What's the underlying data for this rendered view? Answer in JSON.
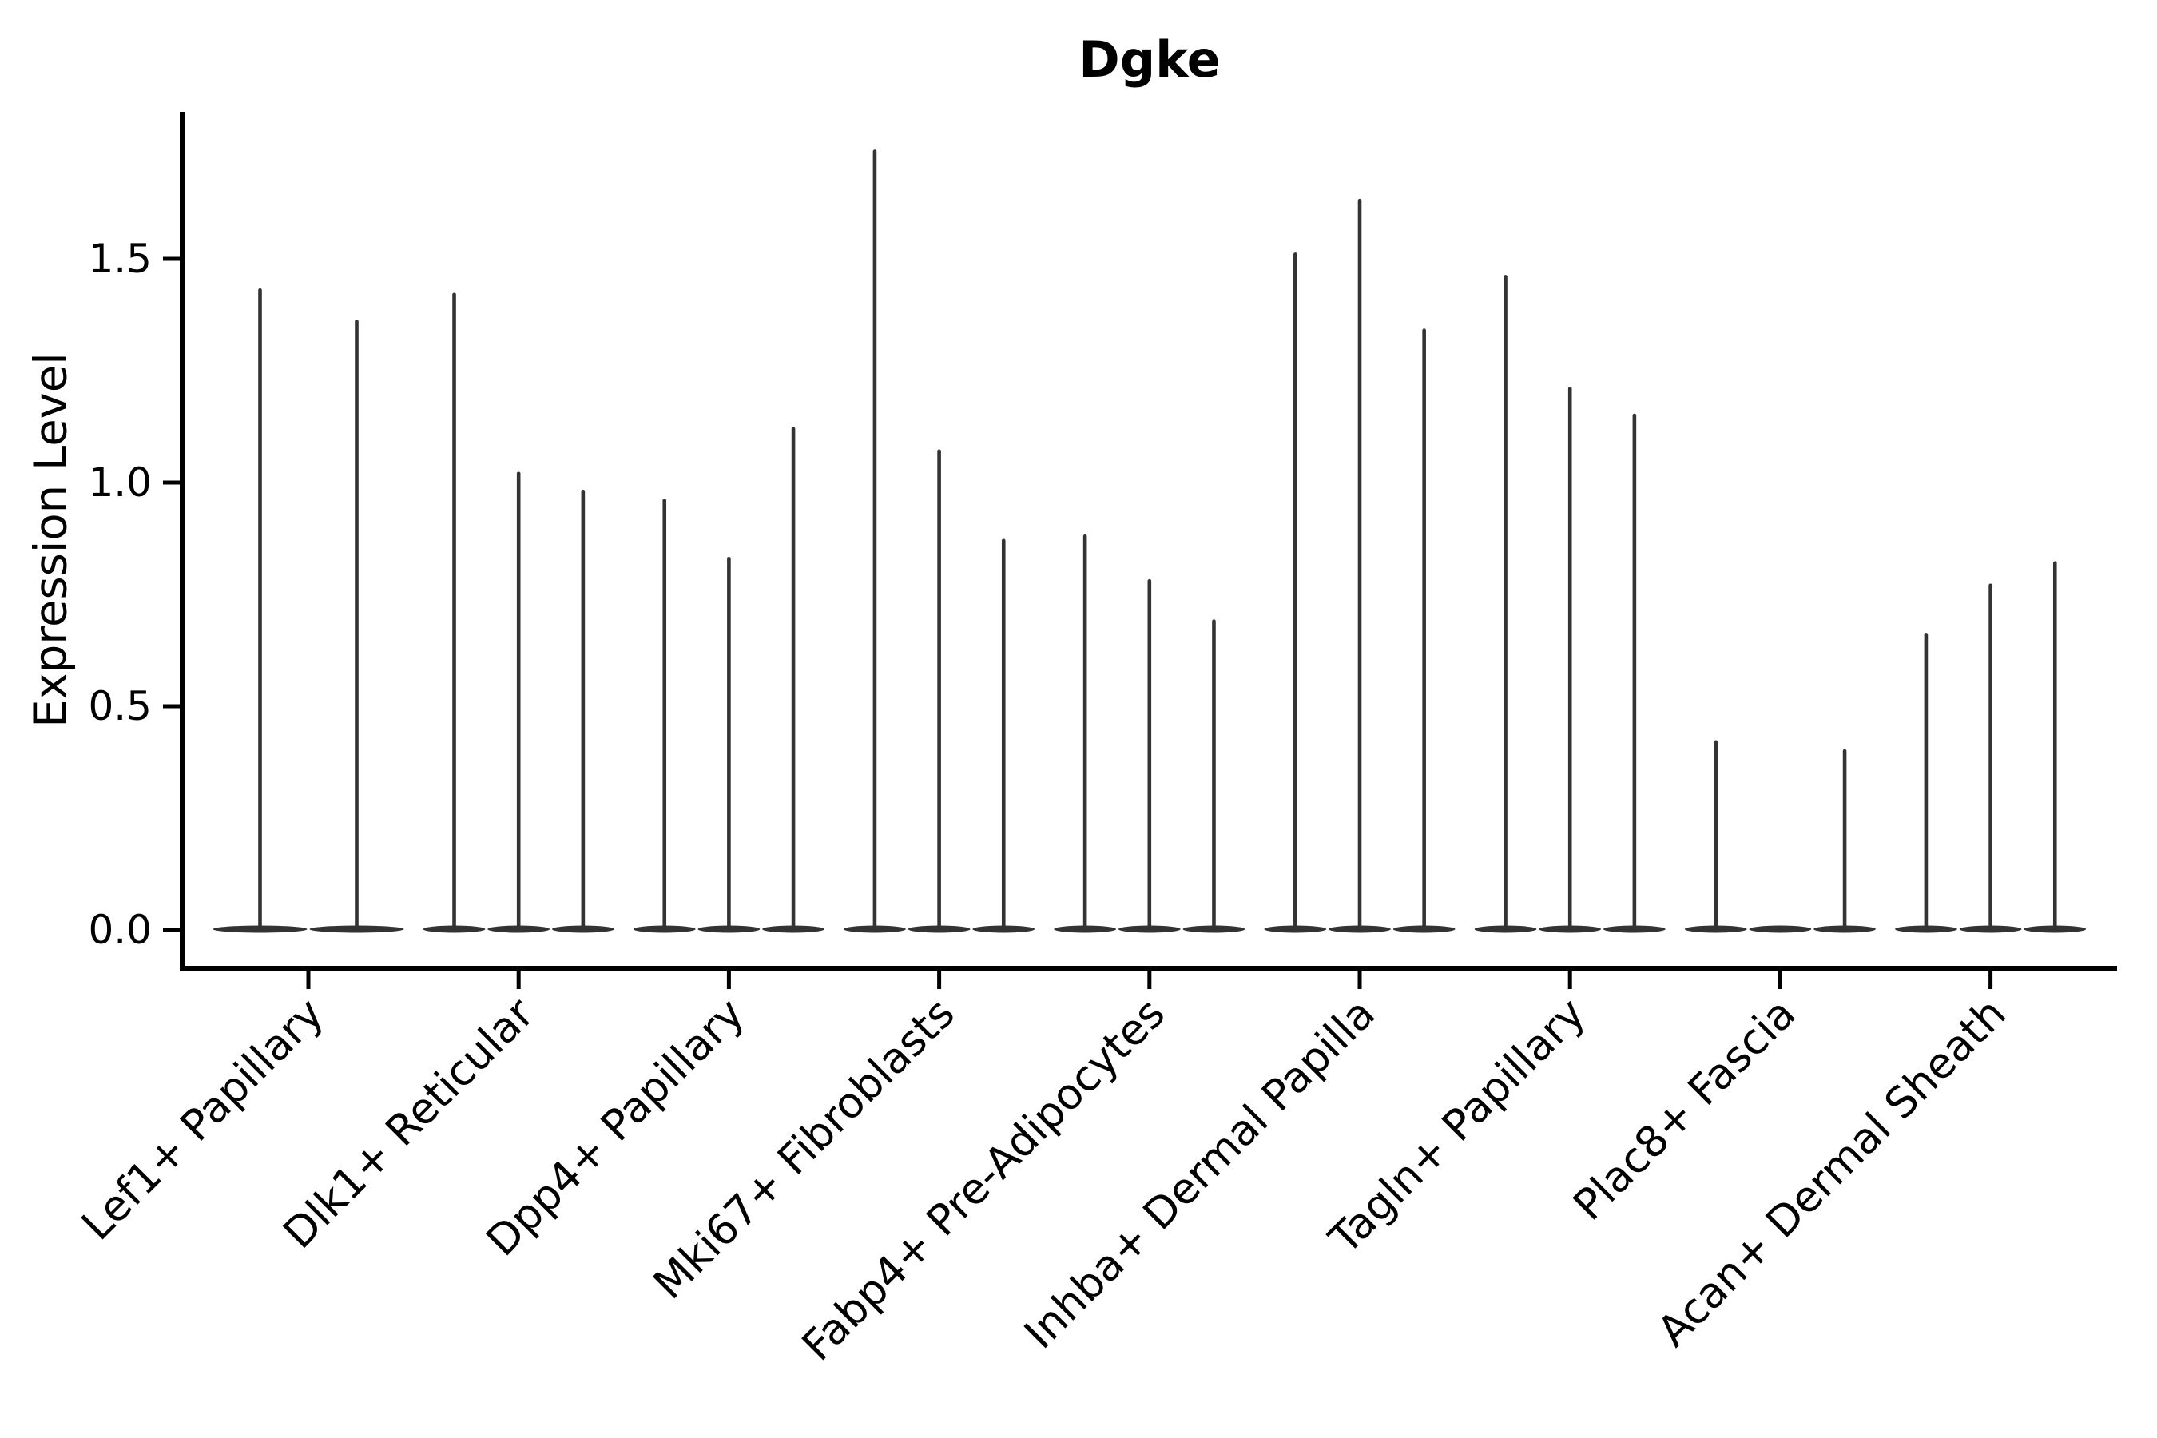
{
  "title": "Dgke",
  "axes": {
    "ylabel": "Expression Level",
    "ytick_labels": [
      "0.0",
      "0.5",
      "1.0",
      "1.5"
    ]
  },
  "chart_data": {
    "type": "violin",
    "title": "Dgke",
    "xlabel": "",
    "ylabel": "Expression Level",
    "ylim": [
      -0.09,
      1.83
    ],
    "yticks": [
      0.0,
      0.5,
      1.0,
      1.5
    ],
    "ytick_labels": [
      "0.0",
      "0.5",
      "1.0",
      "1.5"
    ],
    "grid": false,
    "legend": "none",
    "categories": [
      "Lef1+ Papillary",
      "Dlk1+ Reticular",
      "Dpp4+ Papillary",
      "Mki67+ Fibroblasts",
      "Fabp4+ Pre-Adipocytes",
      "Inhba+ Dermal Papilla",
      "Tagln+ Papillary",
      "Plac8+ Fascia",
      "Acan+ Dermal Sheath"
    ],
    "groups": [
      {
        "category": "Lef1+ Papillary",
        "violin_maxima": [
          1.43,
          1.36
        ]
      },
      {
        "category": "Dlk1+ Reticular",
        "violin_maxima": [
          1.42,
          1.02,
          0.98
        ]
      },
      {
        "category": "Dpp4+ Papillary",
        "violin_maxima": [
          0.96,
          0.83,
          1.12
        ]
      },
      {
        "category": "Mki67+ Fibroblasts",
        "violin_maxima": [
          1.74,
          1.07,
          0.87
        ]
      },
      {
        "category": "Fabp4+ Pre-Adipocytes",
        "violin_maxima": [
          0.88,
          0.78,
          0.69
        ]
      },
      {
        "category": "Inhba+ Dermal Papilla",
        "violin_maxima": [
          1.51,
          1.63,
          1.34
        ]
      },
      {
        "category": "Tagln+ Papillary",
        "violin_maxima": [
          1.46,
          1.21,
          1.15
        ]
      },
      {
        "category": "Plac8+ Fascia",
        "violin_maxima": [
          0.42,
          0.0,
          0.4
        ]
      },
      {
        "category": "Acan+ Dermal Sheath",
        "violin_maxima": [
          0.66,
          0.77,
          0.82
        ]
      }
    ],
    "violins_all_have_zero_baseline": true,
    "colors": {
      "violin": "#333333",
      "axis": "#000000",
      "text": "#000000",
      "background": "#ffffff"
    }
  }
}
